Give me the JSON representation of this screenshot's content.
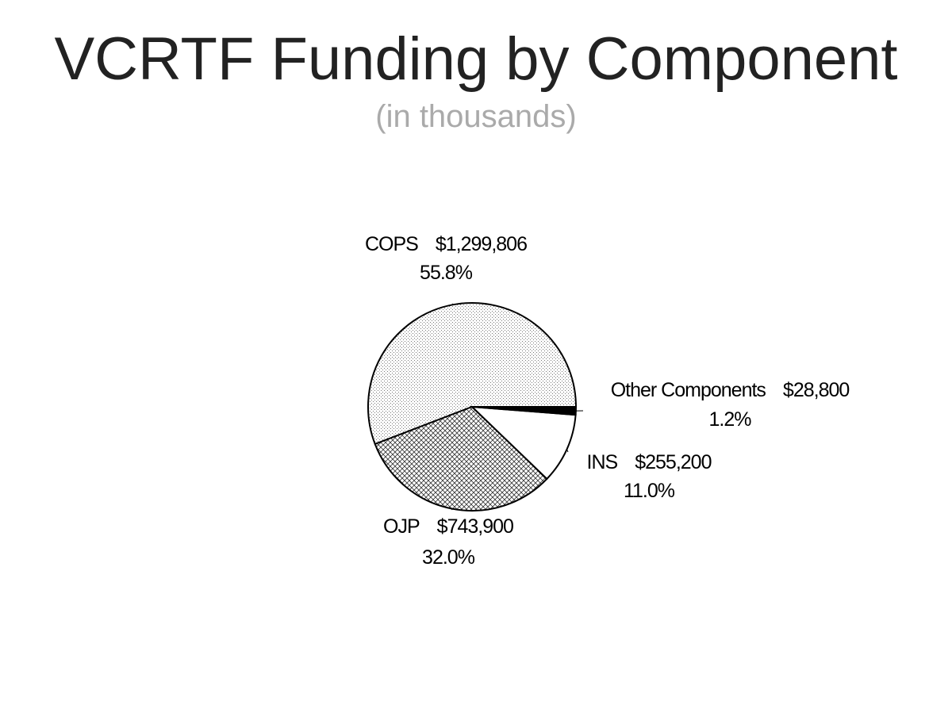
{
  "chart_data": {
    "type": "pie",
    "title": "VCRTF Funding by Component",
    "subtitle": "(in thousands)",
    "categories": [
      "COPS",
      "OJP",
      "INS",
      "Other Components"
    ],
    "values": [
      1299806,
      743900,
      255200,
      28800
    ],
    "value_labels": [
      "$1,299,806",
      "$743,900",
      "$255,200",
      "$28,800"
    ],
    "percent_labels": [
      "55.8%",
      "32.0%",
      "11.0%",
      "1.2%"
    ],
    "colors": [
      "#d8d8d8",
      "#b0b0b0",
      "#ffffff",
      "#000000"
    ]
  }
}
